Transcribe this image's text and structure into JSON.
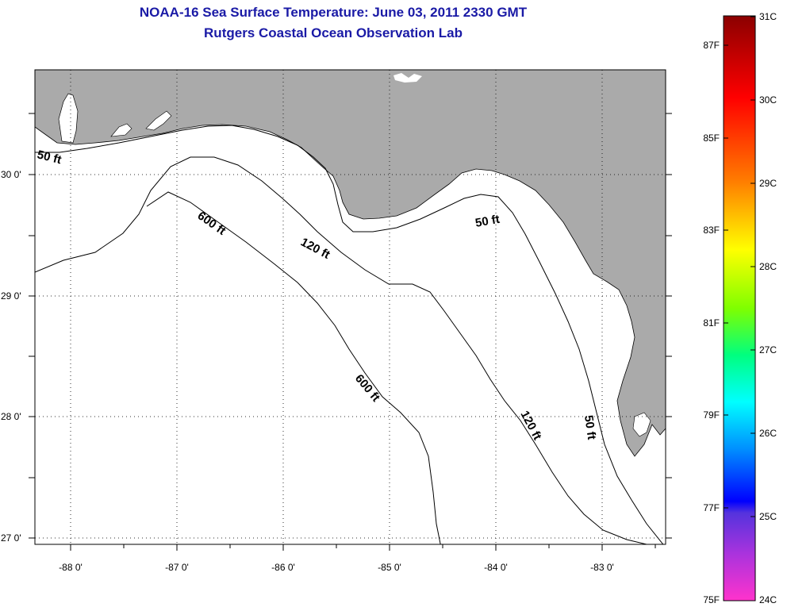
{
  "header": {
    "title": "NOAA-16 Sea Surface Temperature:  June 03, 2011 2330 GMT",
    "subtitle": "Rutgers Coastal Ocean Observation Lab"
  },
  "map": {
    "lon_range": [
      -88.33,
      -82.4
    ],
    "lat_range": [
      26.94,
      30.86
    ],
    "lon_ticks": [
      {
        "value": -88,
        "label": "-88 0'"
      },
      {
        "value": -87,
        "label": "-87 0'"
      },
      {
        "value": -86,
        "label": "-86 0'"
      },
      {
        "value": -85,
        "label": "-85 0'"
      },
      {
        "value": -84,
        "label": "-84 0'"
      },
      {
        "value": -83,
        "label": "-83 0'"
      }
    ],
    "lat_ticks": [
      {
        "value": 30,
        "label": "30 0'"
      },
      {
        "value": 29,
        "label": "29 0'"
      },
      {
        "value": 28,
        "label": "28 0'"
      },
      {
        "value": 27,
        "label": "27 0'"
      }
    ],
    "land_color": "#aaaaaa",
    "ocean_color": "#ffffff",
    "grid": "dotted",
    "contour_labels": [
      {
        "text": "50 ft"
      },
      {
        "text": "600 ft"
      },
      {
        "text": "120 ft"
      },
      {
        "text": "50 ft"
      },
      {
        "text": "600 ft"
      },
      {
        "text": "120 ft"
      },
      {
        "text": "50 ft"
      }
    ]
  },
  "colorbar": {
    "colors": [
      "#8b0000",
      "#ff0000",
      "#ff7a00",
      "#ffff00",
      "#7fff00",
      "#00ff7f",
      "#00ffff",
      "#0090ff",
      "#0000ff",
      "#8a2be2",
      "#ff33cc"
    ],
    "celsius_labels": [
      {
        "value": 31,
        "label": "31C"
      },
      {
        "value": 30,
        "label": "30C"
      },
      {
        "value": 29,
        "label": "29C"
      },
      {
        "value": 28,
        "label": "28C"
      },
      {
        "value": 27,
        "label": "27C"
      },
      {
        "value": 26,
        "label": "26C"
      },
      {
        "value": 25,
        "label": "25C"
      },
      {
        "value": 24,
        "label": "24C"
      }
    ],
    "fahrenheit_labels": [
      {
        "value": 87,
        "label": "87F"
      },
      {
        "value": 85,
        "label": "85F"
      },
      {
        "value": 83,
        "label": "83F"
      },
      {
        "value": 81,
        "label": "81F"
      },
      {
        "value": 79,
        "label": "79F"
      },
      {
        "value": 77,
        "label": "77F"
      },
      {
        "value": 75,
        "label": "75F"
      }
    ]
  }
}
